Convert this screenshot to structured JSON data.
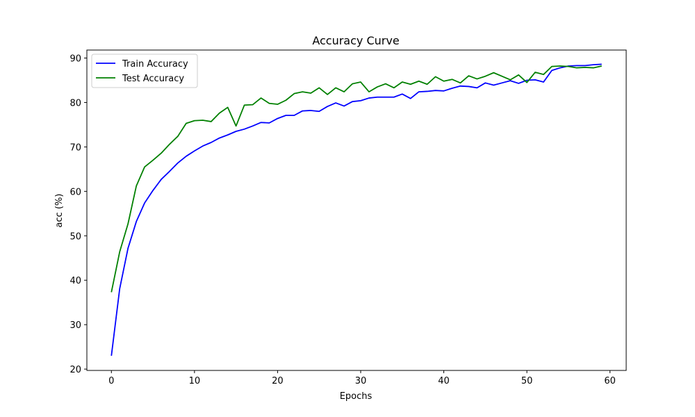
{
  "chart_data": {
    "type": "line",
    "title": "Accuracy Curve",
    "xlabel": "Epochs",
    "ylabel": "acc (%)",
    "xlim": [
      -2.95,
      61.95
    ],
    "ylim": [
      19.7,
      91.8
    ],
    "x_ticks": [
      0,
      10,
      20,
      30,
      40,
      50,
      60
    ],
    "y_ticks": [
      20,
      30,
      40,
      50,
      60,
      70,
      80,
      90
    ],
    "grid": false,
    "legend_position": "top-left",
    "x": [
      0,
      1,
      2,
      3,
      4,
      5,
      6,
      7,
      8,
      9,
      10,
      11,
      12,
      13,
      14,
      15,
      16,
      17,
      18,
      19,
      20,
      21,
      22,
      23,
      24,
      25,
      26,
      27,
      28,
      29,
      30,
      31,
      32,
      33,
      34,
      35,
      36,
      37,
      38,
      39,
      40,
      41,
      42,
      43,
      44,
      45,
      46,
      47,
      48,
      49,
      50,
      51,
      52,
      53,
      54,
      55,
      56,
      57,
      58,
      59
    ],
    "series": [
      {
        "name": "Train Accuracy",
        "color": "#0000ff",
        "values": [
          23.0,
          38.1,
          47.2,
          53.2,
          57.4,
          60.2,
          62.7,
          64.5,
          66.4,
          67.9,
          69.1,
          70.2,
          71.0,
          72.0,
          72.7,
          73.5,
          74.0,
          74.7,
          75.5,
          75.4,
          76.4,
          77.1,
          77.1,
          78.1,
          78.2,
          78.0,
          79.1,
          79.9,
          79.2,
          80.2,
          80.4,
          81.0,
          81.2,
          81.2,
          81.2,
          81.9,
          80.9,
          82.4,
          82.5,
          82.7,
          82.6,
          83.2,
          83.7,
          83.6,
          83.3,
          84.4,
          83.9,
          84.4,
          84.9,
          84.3,
          85.0,
          85.1,
          84.6,
          87.2,
          87.8,
          88.2,
          88.3,
          88.3,
          88.5,
          88.6
        ]
      },
      {
        "name": "Test Accuracy",
        "color": "#008000",
        "values": [
          37.3,
          46.4,
          52.7,
          61.2,
          65.5,
          67.0,
          68.6,
          70.6,
          72.4,
          75.3,
          75.9,
          76.0,
          75.7,
          77.6,
          78.9,
          74.7,
          79.4,
          79.5,
          81.0,
          79.8,
          79.6,
          80.5,
          82.0,
          82.4,
          82.1,
          83.3,
          81.8,
          83.3,
          82.4,
          84.2,
          84.6,
          82.4,
          83.5,
          84.2,
          83.3,
          84.6,
          84.1,
          84.8,
          84.1,
          85.8,
          84.8,
          85.2,
          84.4,
          86.0,
          85.3,
          85.9,
          86.7,
          85.9,
          85.1,
          86.2,
          84.5,
          86.8,
          86.3,
          88.1,
          88.2,
          88.1,
          87.8,
          87.9,
          87.8,
          88.2
        ]
      }
    ]
  }
}
